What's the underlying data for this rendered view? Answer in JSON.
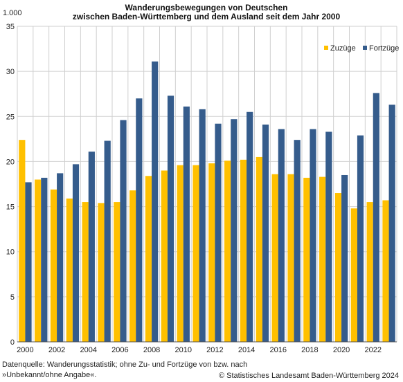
{
  "chart_data": {
    "type": "bar",
    "title": "Wanderungsbewegungen von Deutschen",
    "subtitle": "zwischen Baden-Württemberg und dem Ausland seit dem Jahr 2000",
    "unit_label": "1.000",
    "ylim": [
      0,
      35
    ],
    "yticks": [
      0,
      5,
      10,
      15,
      20,
      25,
      30,
      35
    ],
    "grid": true,
    "legend_position": "top-right",
    "categories": [
      "2000",
      "2001",
      "2002",
      "2003",
      "2004",
      "2005",
      "2006",
      "2007",
      "2008",
      "2009",
      "2010",
      "2011",
      "2012",
      "2013",
      "2014",
      "2015",
      "2016",
      "2017",
      "2018",
      "2019",
      "2020",
      "2021",
      "2022",
      "2023"
    ],
    "x_tick_labels": [
      "2000",
      "",
      "2002",
      "",
      "2004",
      "",
      "2006",
      "",
      "2008",
      "",
      "2010",
      "",
      "2012",
      "",
      "2014",
      "",
      "2016",
      "",
      "2018",
      "",
      "2020",
      "",
      "2022",
      ""
    ],
    "series": [
      {
        "name": "Zuzüge",
        "color": "#FFC000",
        "values": [
          22.4,
          18.0,
          16.9,
          15.9,
          15.5,
          15.4,
          15.5,
          16.8,
          18.4,
          19.0,
          19.6,
          19.6,
          19.8,
          20.1,
          20.2,
          20.5,
          18.6,
          18.6,
          18.2,
          18.3,
          16.5,
          14.8,
          15.5,
          15.7
        ]
      },
      {
        "name": "Fortzüge",
        "color": "#355C8C",
        "values": [
          17.7,
          18.2,
          18.7,
          19.7,
          21.1,
          22.3,
          24.6,
          27.0,
          31.1,
          27.3,
          26.1,
          25.8,
          24.2,
          24.7,
          25.5,
          24.1,
          23.6,
          22.4,
          23.6,
          23.3,
          18.5,
          22.9,
          27.6,
          26.3
        ]
      }
    ]
  },
  "footer": {
    "source": "Datenquelle: Wanderungsstatistik; ohne Zu- und Fortzüge von bzw. nach »Unbekannt/ohne Angabe«.",
    "copyright": "© Statistisches Landesamt Baden-Württemberg 2024"
  }
}
